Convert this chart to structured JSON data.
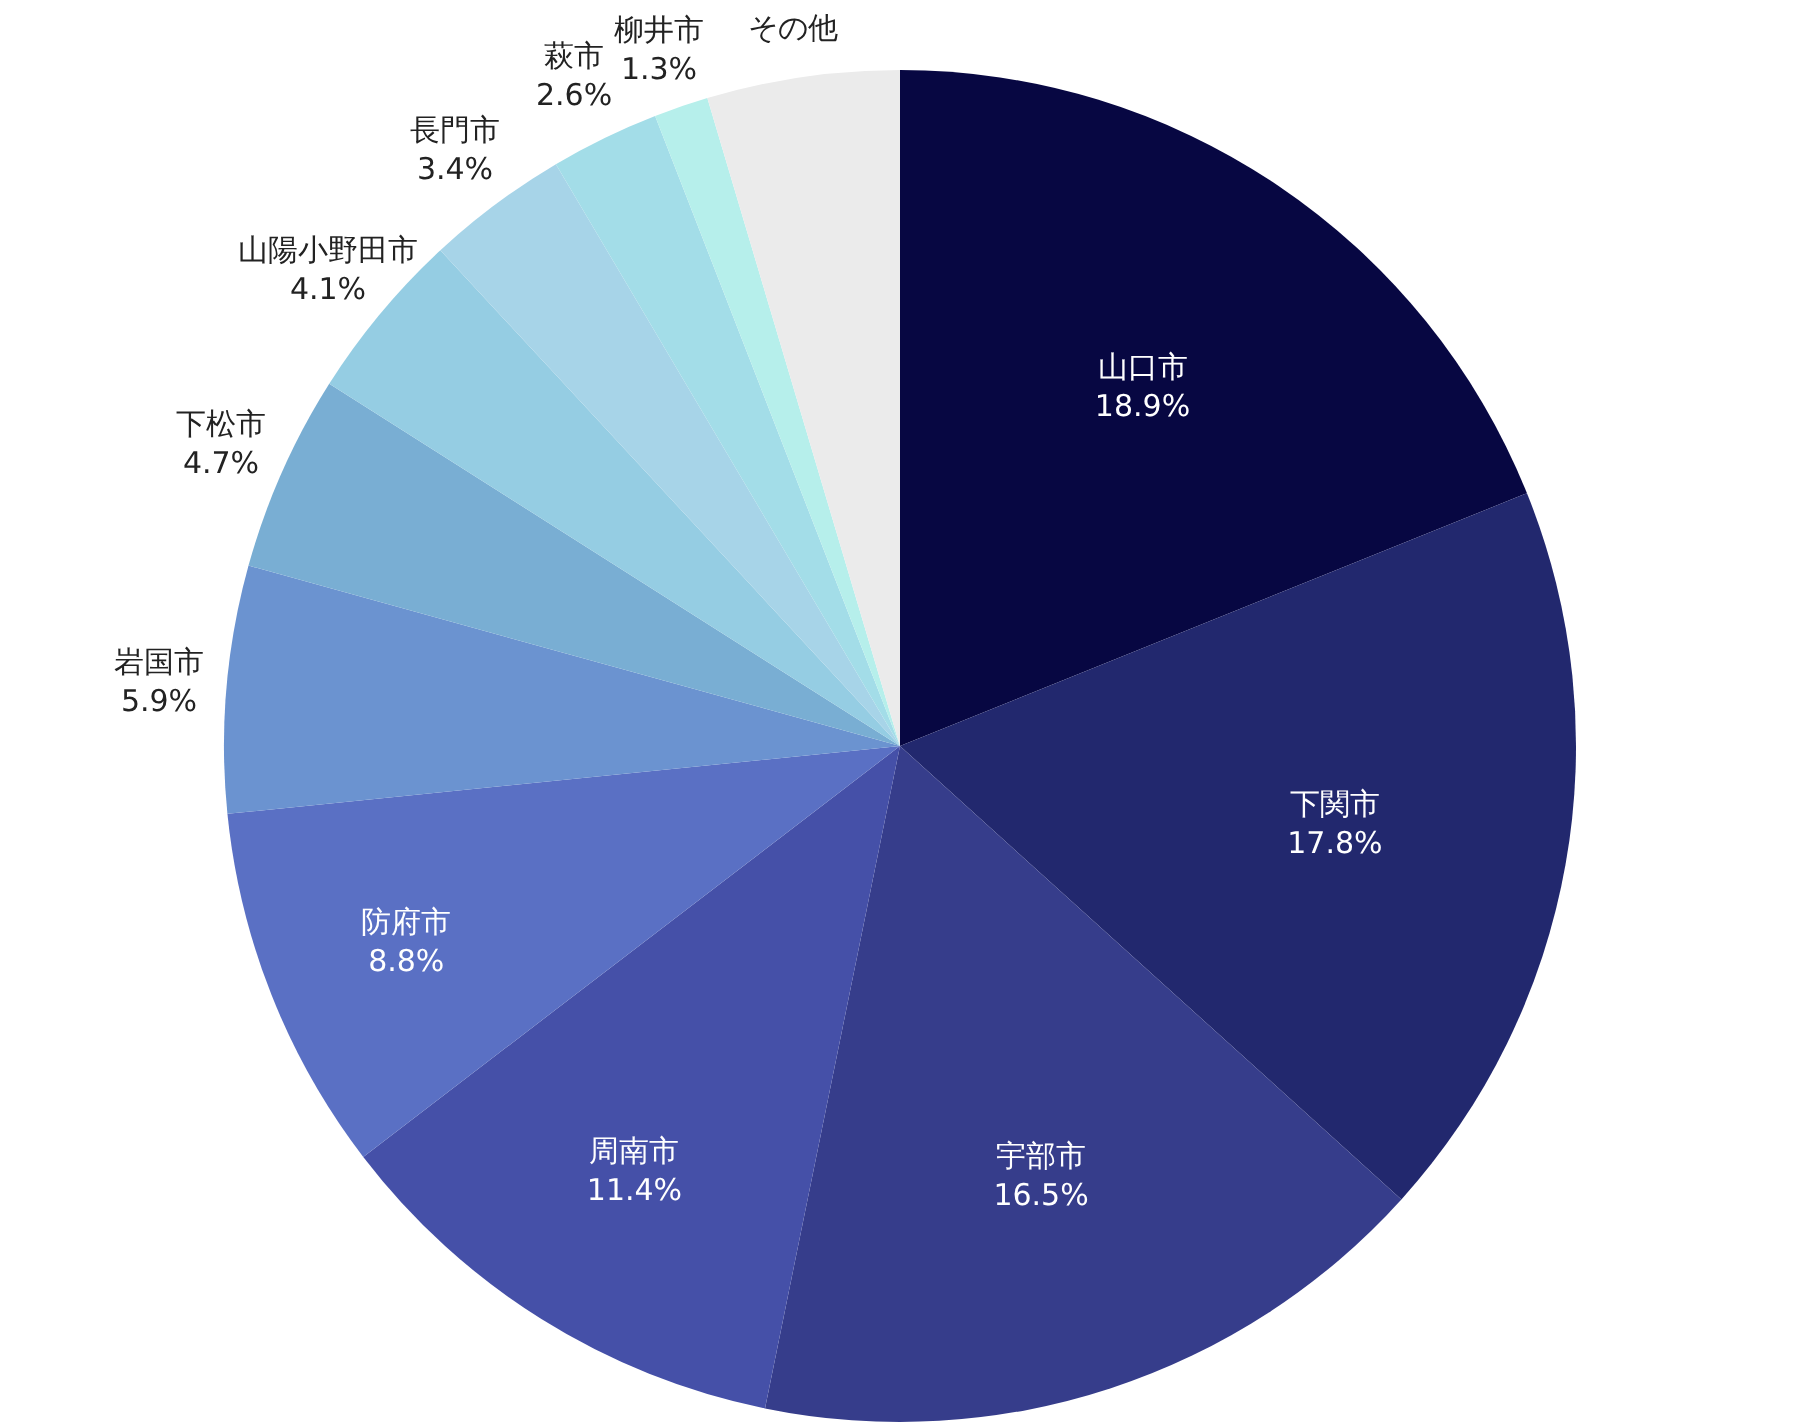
{
  "chart_data": {
    "type": "pie",
    "categories": [
      "山口市",
      "下関市",
      "宇部市",
      "周南市",
      "防府市",
      "岩国市",
      "下松市",
      "山陽小野田市",
      "長門市",
      "萩市",
      "柳井市",
      "その他"
    ],
    "values": [
      18.9,
      17.8,
      16.5,
      11.4,
      8.8,
      5.9,
      4.7,
      4.1,
      3.4,
      2.6,
      1.3,
      4.6
    ],
    "value_labels": [
      "18.9%",
      "17.8%",
      "16.5%",
      "11.4%",
      "8.8%",
      "5.9%",
      "4.7%",
      "4.1%",
      "3.4%",
      "2.6%",
      "1.3%",
      null
    ],
    "colors": [
      "#070742",
      "#22286e",
      "#363d8b",
      "#4550a8",
      "#5a70c4",
      "#6b93d0",
      "#79aed3",
      "#95cde3",
      "#a7d4e8",
      "#a3dde8",
      "#b6efeb",
      "#ebebeb"
    ]
  }
}
